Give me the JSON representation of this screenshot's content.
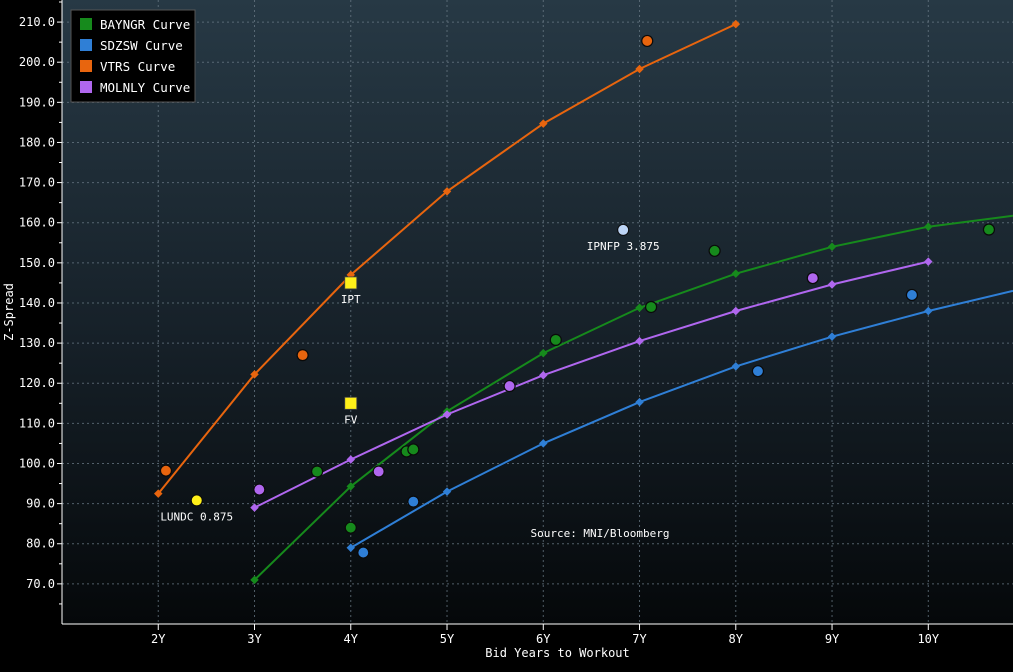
{
  "chart_data": {
    "type": "scatter",
    "xlabel": "Bid Years to Workout",
    "ylabel": "Z-Spread",
    "xlim": [
      1.0,
      10.88
    ],
    "ylim": [
      60.0,
      215.5
    ],
    "x_ticks": [
      {
        "value": 2,
        "label": "2Y"
      },
      {
        "value": 3,
        "label": "3Y"
      },
      {
        "value": 4,
        "label": "4Y"
      },
      {
        "value": 5,
        "label": "5Y"
      },
      {
        "value": 6,
        "label": "6Y"
      },
      {
        "value": 7,
        "label": "7Y"
      },
      {
        "value": 8,
        "label": "8Y"
      },
      {
        "value": 9,
        "label": "9Y"
      },
      {
        "value": 10,
        "label": "10Y"
      }
    ],
    "y_ticks": [
      {
        "value": 70,
        "label": "70.0"
      },
      {
        "value": 80,
        "label": "80.0"
      },
      {
        "value": 90,
        "label": "90.0"
      },
      {
        "value": 100,
        "label": "100.0"
      },
      {
        "value": 110,
        "label": "110.0"
      },
      {
        "value": 120,
        "label": "120.0"
      },
      {
        "value": 130,
        "label": "130.0"
      },
      {
        "value": 140,
        "label": "140.0"
      },
      {
        "value": 150,
        "label": "150.0"
      },
      {
        "value": 160,
        "label": "160.0"
      },
      {
        "value": 170,
        "label": "170.0"
      },
      {
        "value": 180,
        "label": "180.0"
      },
      {
        "value": 190,
        "label": "190.0"
      },
      {
        "value": 200,
        "label": "200.0"
      },
      {
        "value": 210,
        "label": "210.0"
      }
    ],
    "grid": true,
    "legend_position": "top-left",
    "series": [
      {
        "name": "BAYNGR Curve",
        "color": "#168a1c",
        "curve": [
          [
            3,
            71
          ],
          [
            4,
            94.3
          ],
          [
            5,
            113
          ],
          [
            6,
            127.5
          ],
          [
            7,
            138.8
          ],
          [
            8,
            147.3
          ],
          [
            9,
            154
          ],
          [
            10,
            159
          ],
          [
            10.9,
            161.8
          ]
        ],
        "bonds": [
          [
            3.65,
            98
          ],
          [
            4.0,
            84
          ],
          [
            4.58,
            103
          ],
          [
            4.65,
            103.5
          ],
          [
            6.13,
            130.8
          ],
          [
            7.12,
            139
          ],
          [
            7.78,
            153
          ],
          [
            10.63,
            158.3
          ]
        ]
      },
      {
        "name": "SDZSW Curve",
        "color": "#2f7fd6",
        "curve": [
          [
            4,
            79
          ],
          [
            5,
            93
          ],
          [
            6,
            105
          ],
          [
            7,
            115.3
          ],
          [
            8,
            124.2
          ],
          [
            9,
            131.6
          ],
          [
            10,
            138
          ],
          [
            10.88,
            143
          ]
        ],
        "bonds": [
          [
            4.13,
            77.8
          ],
          [
            4.65,
            90.5
          ],
          [
            8.23,
            123
          ],
          [
            9.83,
            142
          ]
        ]
      },
      {
        "name": "VTRS Curve",
        "color": "#e8650e",
        "curve": [
          [
            2,
            92.5
          ],
          [
            3,
            122.2
          ],
          [
            4,
            147
          ],
          [
            5,
            167.8
          ],
          [
            6,
            184.7
          ],
          [
            7,
            198.3
          ],
          [
            8,
            209.5
          ]
        ],
        "bonds": [
          [
            2.08,
            98.2
          ],
          [
            3.5,
            127
          ],
          [
            7.08,
            205.3
          ]
        ]
      },
      {
        "name": "MOLNLY Curve",
        "color": "#b067ef",
        "curve": [
          [
            3,
            89
          ],
          [
            4,
            101
          ],
          [
            5,
            112.2
          ],
          [
            6,
            122
          ],
          [
            7,
            130.5
          ],
          [
            8,
            138
          ],
          [
            9,
            144.6
          ],
          [
            10,
            150.3
          ]
        ],
        "bonds": [
          [
            3.05,
            93.5
          ],
          [
            4.29,
            98
          ],
          [
            5.65,
            119.3
          ],
          [
            8.8,
            146.2
          ]
        ]
      }
    ],
    "markers": [
      {
        "label": "LUNDC 0.875",
        "x": 2.4,
        "y": 90.8,
        "color": "#fff019",
        "shape": "circle",
        "label_side": "below"
      },
      {
        "label": "IPNFP 3.875",
        "x": 6.83,
        "y": 158.2,
        "color": "#bcd4f5",
        "shape": "circle",
        "label_side": "below"
      },
      {
        "label": "IPT",
        "x": 4.0,
        "y": 145,
        "color": "#fff019",
        "shape": "square",
        "label_side": "below"
      },
      {
        "label": "FV",
        "x": 4.0,
        "y": 115,
        "color": "#fff019",
        "shape": "square",
        "label_side": "below"
      }
    ],
    "annotation": "Source: MNI/Bloomberg"
  }
}
